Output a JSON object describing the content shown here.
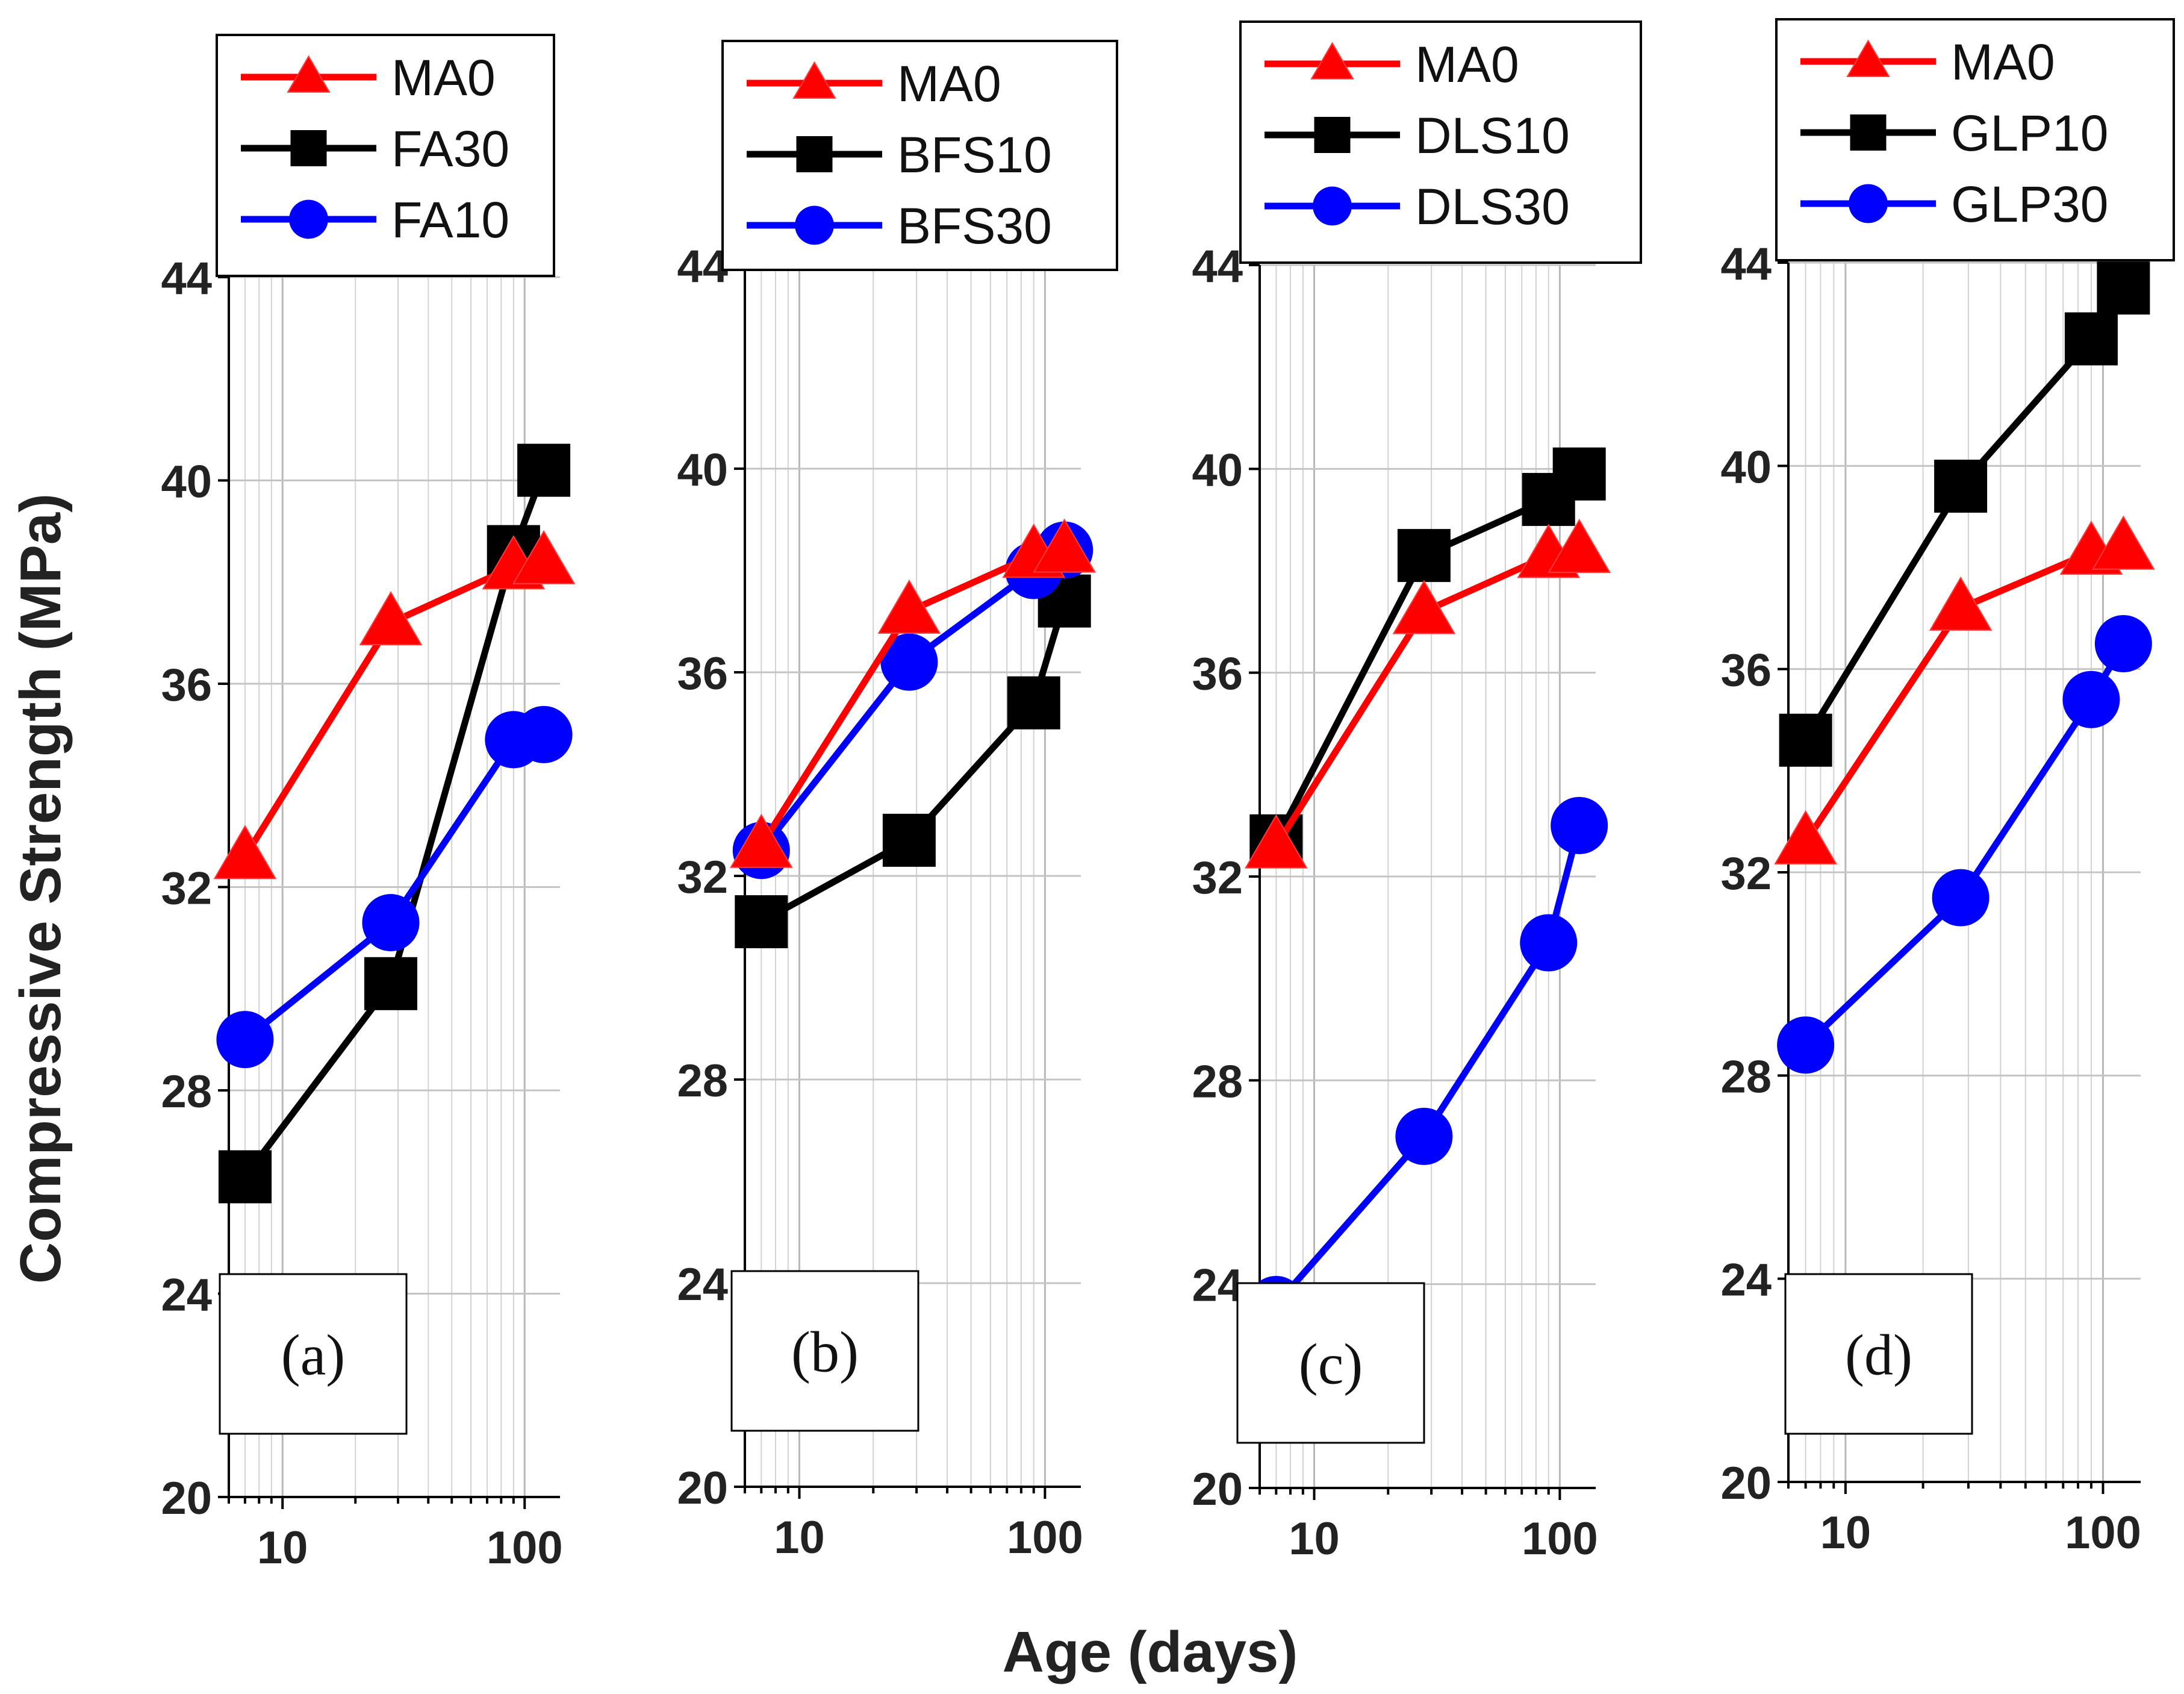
{
  "figure": {
    "ylabel": "Compressive Strength (MPa)",
    "xlabel": "Age (days)"
  },
  "chart_data": [
    {
      "type": "line",
      "panel_label": "(a)",
      "x_scale": "log",
      "xlim": [
        6,
        140
      ],
      "ylim": [
        20,
        44
      ],
      "x_ticks": [
        10,
        100
      ],
      "y_ticks": [
        20,
        24,
        28,
        32,
        36,
        40,
        44
      ],
      "grid": "vertical",
      "series": [
        {
          "name": "MA0",
          "color": "#ff0000",
          "marker": "triangle",
          "x": [
            7,
            28,
            90,
            120
          ],
          "values": [
            32.6,
            37.2,
            38.3,
            38.4
          ]
        },
        {
          "name": "FA30",
          "color": "#000000",
          "marker": "square",
          "x": [
            7,
            28,
            90,
            120
          ],
          "values": [
            26.3,
            30.1,
            38.6,
            40.2
          ]
        },
        {
          "name": "FA10",
          "color": "#0000ff",
          "marker": "circle",
          "x": [
            7,
            28,
            90,
            120
          ],
          "values": [
            29.0,
            31.3,
            34.9,
            35.0
          ]
        }
      ]
    },
    {
      "type": "line",
      "panel_label": "(b)",
      "x_scale": "log",
      "xlim": [
        6,
        140
      ],
      "ylim": [
        20,
        44
      ],
      "x_ticks": [
        10,
        100
      ],
      "y_ticks": [
        20,
        24,
        28,
        32,
        36,
        40,
        44
      ],
      "grid": "vertical",
      "series": [
        {
          "name": "MA0",
          "color": "#ff0000",
          "marker": "triangle",
          "x": [
            7,
            28,
            90,
            120
          ],
          "values": [
            32.6,
            37.2,
            38.3,
            38.4
          ]
        },
        {
          "name": "BFS10",
          "color": "#000000",
          "marker": "square",
          "x": [
            7,
            28,
            90,
            120
          ],
          "values": [
            31.1,
            32.7,
            35.4,
            37.4
          ]
        },
        {
          "name": "BFS30",
          "color": "#0000ff",
          "marker": "circle",
          "x": [
            7,
            28,
            90,
            120
          ],
          "values": [
            32.5,
            36.2,
            38.0,
            38.4
          ]
        }
      ]
    },
    {
      "type": "line",
      "panel_label": "(c)",
      "x_scale": "log",
      "xlim": [
        6,
        140
      ],
      "ylim": [
        20,
        44
      ],
      "x_ticks": [
        10,
        100
      ],
      "y_ticks": [
        20,
        24,
        28,
        32,
        36,
        40,
        44
      ],
      "grid": "vertical",
      "series": [
        {
          "name": "MA0",
          "color": "#ff0000",
          "marker": "triangle",
          "x": [
            7,
            28,
            90,
            120
          ],
          "values": [
            32.6,
            37.2,
            38.3,
            38.4
          ]
        },
        {
          "name": "DLS10",
          "color": "#000000",
          "marker": "square",
          "x": [
            7,
            28,
            90,
            120
          ],
          "values": [
            32.7,
            38.3,
            39.4,
            39.9
          ]
        },
        {
          "name": "DLS30",
          "color": "#0000ff",
          "marker": "circle",
          "x": [
            7,
            28,
            90,
            120
          ],
          "values": [
            23.6,
            26.9,
            30.7,
            33.0
          ]
        }
      ]
    },
    {
      "type": "line",
      "panel_label": "(d)",
      "x_scale": "log",
      "xlim": [
        6,
        140
      ],
      "ylim": [
        20,
        44
      ],
      "x_ticks": [
        10,
        100
      ],
      "y_ticks": [
        20,
        24,
        28,
        32,
        36,
        40,
        44
      ],
      "grid": "vertical",
      "series": [
        {
          "name": "MA0",
          "color": "#ff0000",
          "marker": "triangle",
          "x": [
            7,
            28,
            90,
            120
          ],
          "values": [
            32.6,
            37.2,
            38.3,
            38.4
          ]
        },
        {
          "name": "GLP10",
          "color": "#000000",
          "marker": "square",
          "x": [
            7,
            28,
            90,
            120
          ],
          "values": [
            34.6,
            39.6,
            42.5,
            43.5
          ]
        },
        {
          "name": "GLP30",
          "color": "#0000ff",
          "marker": "circle",
          "x": [
            7,
            28,
            90,
            120
          ],
          "values": [
            28.6,
            31.5,
            35.4,
            36.5
          ]
        }
      ]
    }
  ]
}
